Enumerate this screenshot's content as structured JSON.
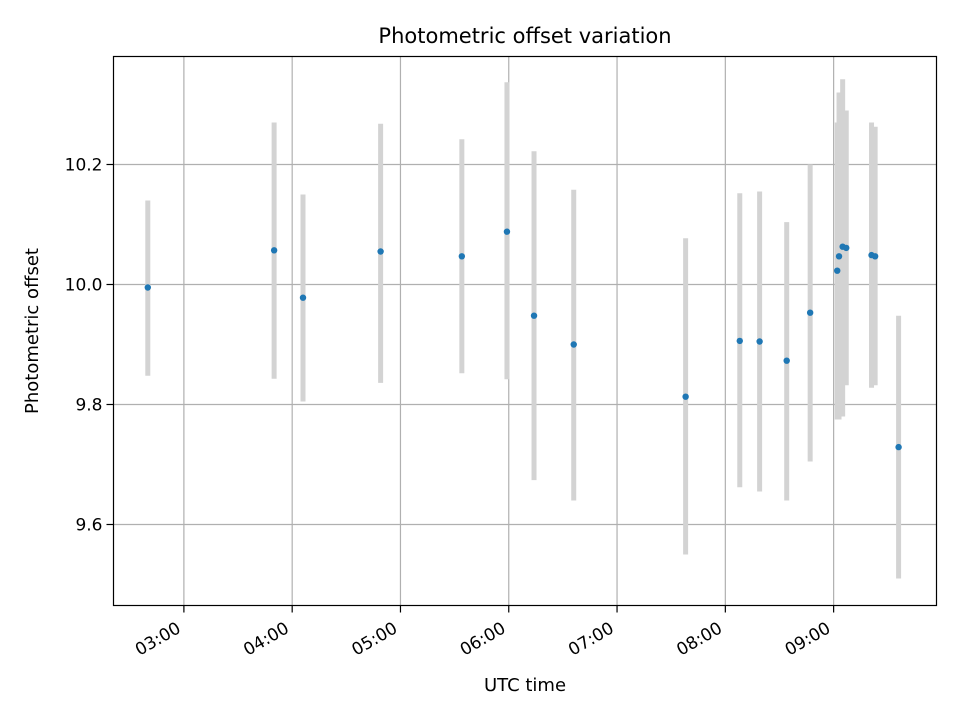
{
  "chart_data": {
    "type": "scatter",
    "title": "Photometric offset variation",
    "xlabel": "UTC time",
    "ylabel": "Photometric offset",
    "grid": true,
    "colors": {
      "point": "#1f77b4",
      "errorbar": "#d3d3d3",
      "grid": "#b0b0b0",
      "axes": "#000000"
    },
    "xlim": [
      "02:21",
      "09:57"
    ],
    "ylim": [
      9.465,
      10.38
    ],
    "xticks": [
      "03:00",
      "04:00",
      "05:00",
      "06:00",
      "07:00",
      "08:00",
      "09:00"
    ],
    "yticks": [
      9.6,
      9.8,
      10.0,
      10.2
    ],
    "ytick_labels": [
      "9.6",
      "9.8",
      "10.0",
      "10.2"
    ],
    "series": [
      {
        "points": [
          {
            "x": "02:40",
            "y": 9.995,
            "ylo": 9.848,
            "yhi": 10.14
          },
          {
            "x": "03:50",
            "y": 10.057,
            "ylo": 9.843,
            "yhi": 10.27
          },
          {
            "x": "04:06",
            "y": 9.978,
            "ylo": 9.805,
            "yhi": 10.15
          },
          {
            "x": "04:49",
            "y": 10.055,
            "ylo": 9.836,
            "yhi": 10.268
          },
          {
            "x": "05:34",
            "y": 10.047,
            "ylo": 9.852,
            "yhi": 10.242
          },
          {
            "x": "05:59",
            "y": 10.088,
            "ylo": 9.842,
            "yhi": 10.337
          },
          {
            "x": "06:14",
            "y": 9.948,
            "ylo": 9.674,
            "yhi": 10.222
          },
          {
            "x": "06:36",
            "y": 9.9,
            "ylo": 9.64,
            "yhi": 10.158
          },
          {
            "x": "07:38",
            "y": 9.813,
            "ylo": 9.55,
            "yhi": 10.077
          },
          {
            "x": "08:08",
            "y": 9.906,
            "ylo": 9.662,
            "yhi": 10.152
          },
          {
            "x": "08:19",
            "y": 9.905,
            "ylo": 9.655,
            "yhi": 10.155
          },
          {
            "x": "08:34",
            "y": 9.873,
            "ylo": 9.64,
            "yhi": 10.104
          },
          {
            "x": "08:47",
            "y": 9.953,
            "ylo": 9.705,
            "yhi": 10.2
          },
          {
            "x": "09:02",
            "y": 10.023,
            "ylo": 9.775,
            "yhi": 10.27
          },
          {
            "x": "09:03",
            "y": 10.047,
            "ylo": 9.775,
            "yhi": 10.32
          },
          {
            "x": "09:05",
            "y": 10.063,
            "ylo": 9.78,
            "yhi": 10.342
          },
          {
            "x": "09:07",
            "y": 10.061,
            "ylo": 9.832,
            "yhi": 10.29
          },
          {
            "x": "09:21",
            "y": 10.049,
            "ylo": 9.828,
            "yhi": 10.27
          },
          {
            "x": "09:23",
            "y": 10.047,
            "ylo": 9.832,
            "yhi": 10.263
          },
          {
            "x": "09:36",
            "y": 9.729,
            "ylo": 9.51,
            "yhi": 9.948
          }
        ]
      }
    ]
  }
}
